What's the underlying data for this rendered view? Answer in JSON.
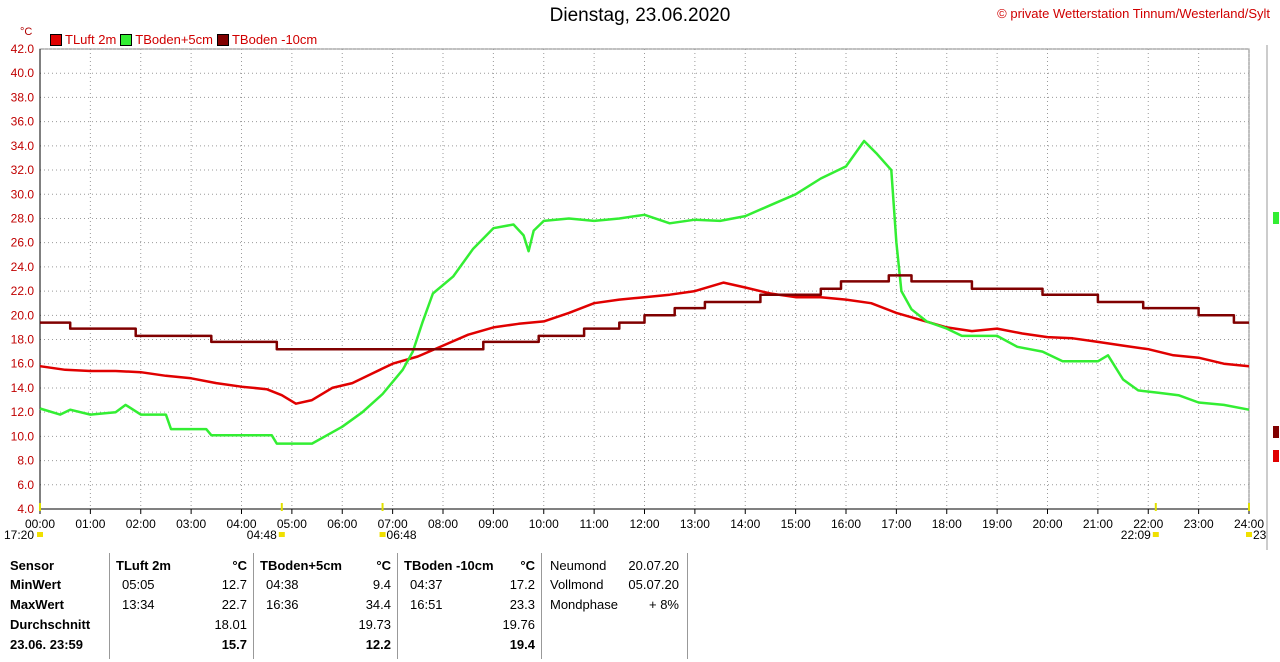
{
  "title": "Dienstag, 23.06.2020",
  "copyright": "© private Wetterstation Tinnum/Westerland/Sylt",
  "unit": "°C",
  "colors": {
    "tluft": "#e00000",
    "tboden5": "#33ee33",
    "tboden10": "#800000"
  },
  "chart_data": {
    "type": "line",
    "title": "Dienstag, 23.06.2020",
    "ylabel": "°C",
    "ylim": [
      4.0,
      42.0
    ],
    "yticks": [
      "4.0",
      "6.0",
      "8.0",
      "10.0",
      "12.0",
      "14.0",
      "16.0",
      "18.0",
      "20.0",
      "22.0",
      "24.0",
      "26.0",
      "28.0",
      "30.0",
      "32.0",
      "34.0",
      "36.0",
      "38.0",
      "40.0",
      "42.0"
    ],
    "xticks": [
      "00:00",
      "01:00",
      "02:00",
      "03:00",
      "04:00",
      "05:00",
      "06:00",
      "07:00",
      "08:00",
      "09:00",
      "10:00",
      "11:00",
      "12:00",
      "13:00",
      "14:00",
      "15:00",
      "16:00",
      "17:00",
      "18:00",
      "19:00",
      "20:00",
      "21:00",
      "22:00",
      "23:00",
      "24:00"
    ],
    "xlim": [
      0,
      24
    ],
    "grid": true,
    "legend_position": "top-left",
    "sun_markers": [
      {
        "label": "17:20",
        "hour": 0
      },
      {
        "label": "04:48",
        "hour": 4.8
      },
      {
        "label": "06:48",
        "hour": 6.8
      },
      {
        "label": "22:09",
        "hour": 22.15
      },
      {
        "label": "23",
        "hour": 24
      }
    ],
    "series": [
      {
        "name": "TLuft 2m",
        "color": "#e00000",
        "points": [
          [
            0,
            15.8
          ],
          [
            0.5,
            15.5
          ],
          [
            1,
            15.4
          ],
          [
            1.5,
            15.4
          ],
          [
            2,
            15.3
          ],
          [
            2.5,
            15.0
          ],
          [
            3,
            14.8
          ],
          [
            3.5,
            14.4
          ],
          [
            4,
            14.1
          ],
          [
            4.5,
            13.9
          ],
          [
            4.8,
            13.4
          ],
          [
            5.08,
            12.7
          ],
          [
            5.4,
            13.0
          ],
          [
            5.8,
            14.0
          ],
          [
            6.2,
            14.4
          ],
          [
            6.6,
            15.2
          ],
          [
            7,
            16.0
          ],
          [
            7.5,
            16.6
          ],
          [
            8,
            17.5
          ],
          [
            8.5,
            18.4
          ],
          [
            9,
            19.0
          ],
          [
            9.5,
            19.3
          ],
          [
            10,
            19.5
          ],
          [
            10.5,
            20.2
          ],
          [
            11,
            21.0
          ],
          [
            11.5,
            21.3
          ],
          [
            12,
            21.5
          ],
          [
            12.5,
            21.7
          ],
          [
            13,
            22.0
          ],
          [
            13.57,
            22.7
          ],
          [
            14,
            22.3
          ],
          [
            14.5,
            21.8
          ],
          [
            15,
            21.5
          ],
          [
            15.5,
            21.5
          ],
          [
            16,
            21.3
          ],
          [
            16.5,
            21.0
          ],
          [
            17,
            20.2
          ],
          [
            17.5,
            19.6
          ],
          [
            18,
            19.0
          ],
          [
            18.5,
            18.7
          ],
          [
            19,
            18.9
          ],
          [
            19.5,
            18.5
          ],
          [
            20,
            18.2
          ],
          [
            20.5,
            18.1
          ],
          [
            21,
            17.8
          ],
          [
            21.5,
            17.5
          ],
          [
            22,
            17.2
          ],
          [
            22.5,
            16.7
          ],
          [
            23,
            16.5
          ],
          [
            23.5,
            16.0
          ],
          [
            24,
            15.8
          ]
        ]
      },
      {
        "name": "TBoden+5cm",
        "color": "#33ee33",
        "points": [
          [
            0,
            12.3
          ],
          [
            0.4,
            11.8
          ],
          [
            0.6,
            12.2
          ],
          [
            1,
            11.8
          ],
          [
            1.5,
            12.0
          ],
          [
            1.7,
            12.6
          ],
          [
            2,
            11.8
          ],
          [
            2.5,
            11.8
          ],
          [
            2.6,
            10.6
          ],
          [
            3.3,
            10.6
          ],
          [
            3.4,
            10.1
          ],
          [
            4.6,
            10.1
          ],
          [
            4.7,
            9.4
          ],
          [
            5.4,
            9.4
          ],
          [
            5.7,
            10.1
          ],
          [
            6.0,
            10.8
          ],
          [
            6.4,
            12.0
          ],
          [
            6.8,
            13.5
          ],
          [
            7.2,
            15.5
          ],
          [
            7.4,
            17.0
          ],
          [
            7.6,
            19.5
          ],
          [
            7.8,
            21.8
          ],
          [
            8.2,
            23.2
          ],
          [
            8.6,
            25.5
          ],
          [
            9,
            27.2
          ],
          [
            9.4,
            27.5
          ],
          [
            9.6,
            26.6
          ],
          [
            9.7,
            25.3
          ],
          [
            9.8,
            27.0
          ],
          [
            10,
            27.8
          ],
          [
            10.5,
            28.0
          ],
          [
            11,
            27.8
          ],
          [
            11.5,
            28.0
          ],
          [
            12,
            28.3
          ],
          [
            12.5,
            27.6
          ],
          [
            13,
            27.9
          ],
          [
            13.5,
            27.8
          ],
          [
            14,
            28.2
          ],
          [
            14.5,
            29.1
          ],
          [
            15,
            30.0
          ],
          [
            15.5,
            31.3
          ],
          [
            16,
            32.3
          ],
          [
            16.36,
            34.4
          ],
          [
            16.6,
            33.4
          ],
          [
            16.9,
            32.0
          ],
          [
            17.0,
            26.0
          ],
          [
            17.1,
            22.0
          ],
          [
            17.3,
            20.5
          ],
          [
            17.6,
            19.5
          ],
          [
            18,
            18.9
          ],
          [
            18.3,
            18.3
          ],
          [
            19,
            18.3
          ],
          [
            19.4,
            17.4
          ],
          [
            19.9,
            17.0
          ],
          [
            20.3,
            16.2
          ],
          [
            21.0,
            16.2
          ],
          [
            21.2,
            16.7
          ],
          [
            21.5,
            14.7
          ],
          [
            21.8,
            13.8
          ],
          [
            22.2,
            13.6
          ],
          [
            22.6,
            13.4
          ],
          [
            23,
            12.8
          ],
          [
            23.5,
            12.6
          ],
          [
            24,
            12.2
          ]
        ]
      },
      {
        "name": "TBoden -10cm",
        "color": "#800000",
        "points": [
          [
            0,
            19.4
          ],
          [
            0.6,
            19.4
          ],
          [
            0.6,
            18.9
          ],
          [
            1.9,
            18.9
          ],
          [
            1.9,
            18.3
          ],
          [
            3.4,
            18.3
          ],
          [
            3.4,
            17.8
          ],
          [
            4.7,
            17.8
          ],
          [
            4.7,
            17.2
          ],
          [
            8.8,
            17.2
          ],
          [
            8.8,
            17.8
          ],
          [
            9.9,
            17.8
          ],
          [
            9.9,
            18.3
          ],
          [
            10.8,
            18.3
          ],
          [
            10.8,
            18.9
          ],
          [
            11.5,
            18.9
          ],
          [
            11.5,
            19.4
          ],
          [
            12,
            19.4
          ],
          [
            12,
            20.0
          ],
          [
            12.6,
            20.0
          ],
          [
            12.6,
            20.6
          ],
          [
            13.2,
            20.6
          ],
          [
            13.2,
            21.1
          ],
          [
            14.3,
            21.1
          ],
          [
            14.3,
            21.7
          ],
          [
            15.5,
            21.7
          ],
          [
            15.5,
            22.2
          ],
          [
            15.9,
            22.2
          ],
          [
            15.9,
            22.8
          ],
          [
            16.85,
            22.8
          ],
          [
            16.85,
            23.3
          ],
          [
            17.3,
            23.3
          ],
          [
            17.3,
            22.8
          ],
          [
            18.5,
            22.8
          ],
          [
            18.5,
            22.2
          ],
          [
            19.9,
            22.2
          ],
          [
            19.9,
            21.7
          ],
          [
            21,
            21.7
          ],
          [
            21,
            21.1
          ],
          [
            21.9,
            21.1
          ],
          [
            21.9,
            20.6
          ],
          [
            23.0,
            20.6
          ],
          [
            23.0,
            20.0
          ],
          [
            23.7,
            20.0
          ],
          [
            23.7,
            19.4
          ],
          [
            24,
            19.4
          ]
        ]
      }
    ]
  },
  "table": {
    "labels": {
      "sensor": "Sensor",
      "min": "MinWert",
      "max": "MaxWert",
      "avg": "Durchschnitt",
      "now": "23.06. 23:59"
    },
    "tluft": {
      "name": "TLuft 2m",
      "unit": "°C",
      "min_time": "05:05",
      "min_val": "12.7",
      "max_time": "13:34",
      "max_val": "22.7",
      "avg": "18.01",
      "now": "15.7"
    },
    "tboden5": {
      "name": "TBoden+5cm",
      "unit": "°C",
      "min_time": "04:38",
      "min_val": "9.4",
      "max_time": "16:36",
      "max_val": "34.4",
      "avg": "19.73",
      "now": "12.2"
    },
    "tboden10": {
      "name": "TBoden -10cm",
      "unit": "°C",
      "min_time": "04:37",
      "min_val": "17.2",
      "max_time": "16:51",
      "max_val": "23.3",
      "avg": "19.76",
      "now": "19.4"
    },
    "moon": {
      "new_label": "Neumond",
      "new_date": "20.07.20",
      "full_label": "Vollmond",
      "full_date": "05.07.20",
      "phase_label": "Mondphase",
      "phase_val": "+ 8%"
    }
  }
}
